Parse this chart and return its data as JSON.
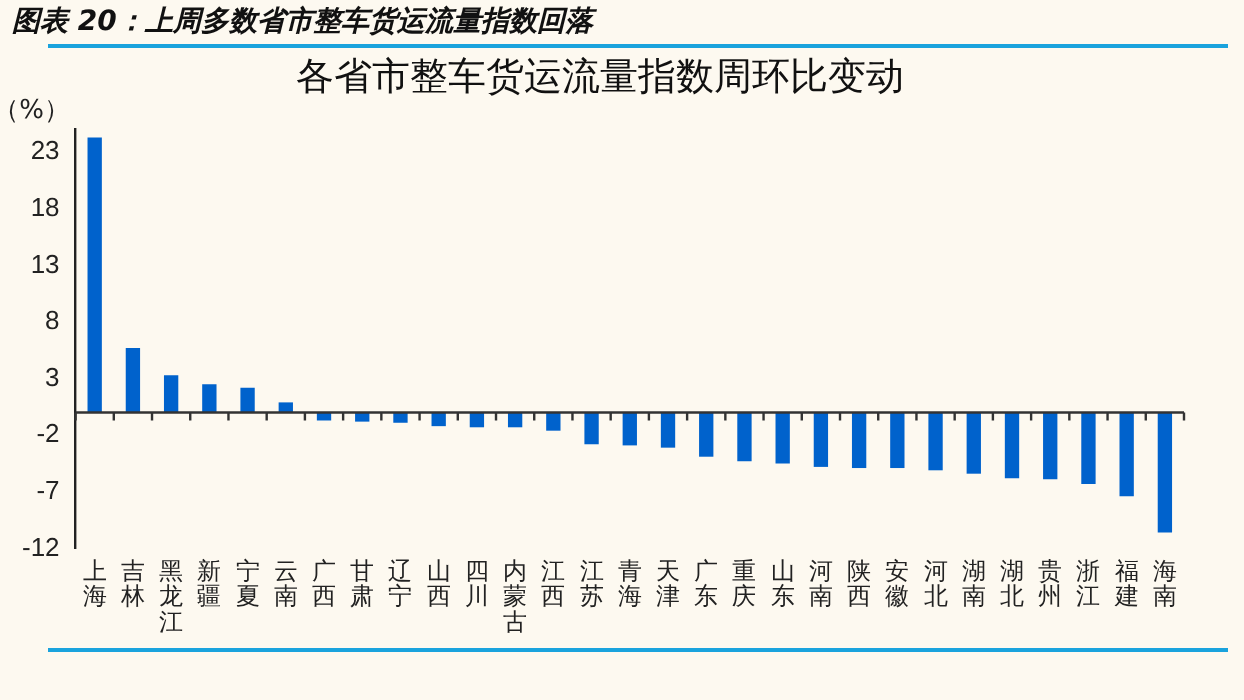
{
  "chart_data": {
    "type": "bar",
    "title": "图表 20：上周多数省市整车货运流量指数回落",
    "subtitle": "各省市整车货运流量指数周环比变动",
    "ylabel": "（%）",
    "categories": [
      "上海",
      "吉林",
      "黑龙江",
      "新疆",
      "宁夏",
      "云南",
      "广西",
      "甘肃",
      "辽宁",
      "山西",
      "四川",
      "内蒙古",
      "江西",
      "江苏",
      "青海",
      "天津",
      "广东",
      "重庆",
      "山东",
      "河南",
      "陕西",
      "安徽",
      "河北",
      "湖南",
      "湖北",
      "贵州",
      "浙江",
      "福建",
      "海南"
    ],
    "values": [
      24.3,
      5.7,
      3.3,
      2.5,
      2.2,
      0.9,
      -0.7,
      -0.8,
      -0.9,
      -1.2,
      -1.3,
      -1.3,
      -1.6,
      -2.8,
      -2.9,
      -3.1,
      -3.9,
      -4.3,
      -4.5,
      -4.8,
      -4.9,
      -4.9,
      -5.1,
      -5.4,
      -5.8,
      -5.9,
      -6.3,
      -7.4,
      -10.6
    ],
    "color": "#0062cc",
    "ylim": [
      -12,
      25
    ],
    "yticks": [
      -12,
      -7,
      -2,
      3,
      8,
      13,
      18,
      23
    ],
    "grid": false,
    "legend": false
  }
}
